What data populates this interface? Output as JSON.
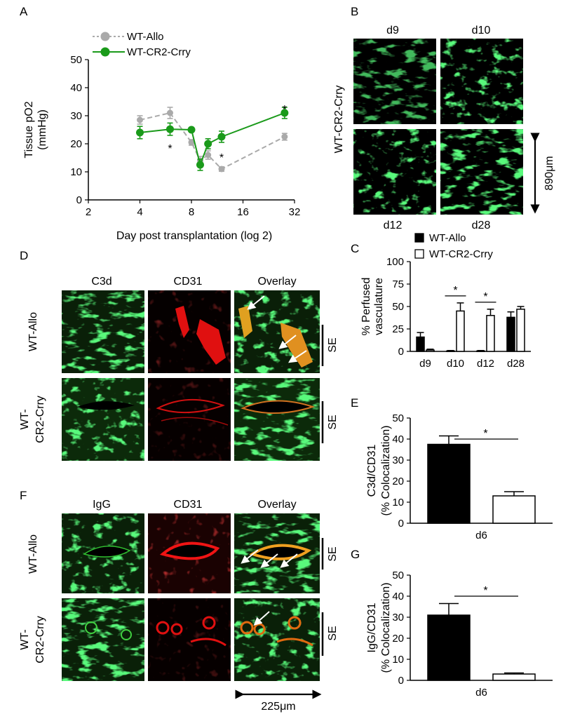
{
  "panels": {
    "a": "A",
    "b": "B",
    "c": "C",
    "d": "D",
    "e": "E",
    "f": "F",
    "g": "G"
  },
  "panel_b": {
    "row_label": "WT-CR2-Crry",
    "labels_top": [
      "d9",
      "d10"
    ],
    "labels_bottom": [
      "d12",
      "d28"
    ],
    "scale": "890μm"
  },
  "panel_d": {
    "columns": [
      "C3d",
      "CD31",
      "Overlay"
    ],
    "rows": [
      [
        "WT-Allo"
      ],
      [
        "WT-",
        "CR2-Crry"
      ]
    ],
    "se": "SE"
  },
  "panel_f": {
    "columns": [
      "IgG",
      "CD31",
      "Overlay"
    ],
    "rows": [
      [
        "WT-Allo"
      ],
      [
        "WT-",
        "CR2-Crry"
      ]
    ],
    "se": "SE",
    "scale": "225μm"
  },
  "colors": {
    "allo": "#aaaaaa",
    "crry": "#1a9a1a",
    "bar_allo": "#000000",
    "bar_crry": "#ffffff"
  },
  "chart_data": [
    {
      "id": "A",
      "type": "line",
      "xlabel": "Day post transplantation (log 2)",
      "ylabel": [
        "Tissue pO2",
        "(mmHg)"
      ],
      "xscale": "log2",
      "xlim": [
        2,
        32
      ],
      "xticks": [
        2,
        4,
        8,
        16,
        32
      ],
      "ylim": [
        0,
        50
      ],
      "yticks": [
        0,
        10,
        20,
        30,
        40,
        50
      ],
      "legend": "top-left",
      "series": [
        {
          "name": "WT-Allo",
          "style": "dashed",
          "x": [
            4,
            6,
            8,
            9,
            10,
            12,
            28
          ],
          "y": [
            28.5,
            31,
            20.5,
            14,
            16,
            11,
            22.5
          ],
          "err": [
            1.5,
            2,
            1,
            1.5,
            1.5,
            0.8,
            1.2
          ]
        },
        {
          "name": "WT-CR2-Crry",
          "style": "solid",
          "x": [
            4,
            6,
            8,
            9,
            10,
            12,
            28
          ],
          "y": [
            24,
            25.2,
            25,
            12.5,
            20,
            22.5,
            31
          ],
          "err": [
            2.2,
            2.2,
            0.8,
            2,
            1.8,
            2,
            2
          ]
        }
      ],
      "sig": [
        {
          "x": 6,
          "y": 19,
          "text": "*"
        },
        {
          "x": 12,
          "y": 15.8,
          "text": "*"
        },
        {
          "x": 28,
          "y": 33,
          "text": "*"
        }
      ]
    },
    {
      "id": "C",
      "type": "bar",
      "ylabel": [
        "% Perfused",
        "vasculature"
      ],
      "categories": [
        "d9",
        "d10",
        "d12",
        "d28"
      ],
      "ylim": [
        0,
        100
      ],
      "yticks": [
        0,
        25,
        50,
        75,
        100
      ],
      "legend": "top",
      "series": [
        {
          "name": "WT-Allo",
          "values": [
            16,
            0.5,
            0.5,
            38
          ],
          "err": [
            5,
            0.5,
            0.5,
            6
          ]
        },
        {
          "name": "WT-CR2-Crry",
          "values": [
            1.5,
            45,
            40,
            47
          ],
          "err": [
            1,
            9,
            7,
            3
          ]
        }
      ],
      "sig": [
        {
          "category": 1,
          "text": "*"
        },
        {
          "category": 2,
          "text": "*"
        }
      ]
    },
    {
      "id": "E",
      "type": "bar",
      "ylabel": [
        "C3d/CD31",
        "(% Colocalization)"
      ],
      "categories": [
        "d6"
      ],
      "ylim": [
        0,
        50
      ],
      "yticks": [
        0,
        10,
        20,
        30,
        40,
        50
      ],
      "series": [
        {
          "name": "WT-Allo",
          "values": [
            37.5
          ],
          "err": [
            4
          ]
        },
        {
          "name": "WT-CR2-Crry",
          "values": [
            13
          ],
          "err": [
            2
          ]
        }
      ],
      "sig_text": "*"
    },
    {
      "id": "G",
      "type": "bar",
      "ylabel": [
        "IgG/CD31",
        "(% Colocalization)"
      ],
      "categories": [
        "d6"
      ],
      "ylim": [
        0,
        50
      ],
      "yticks": [
        0,
        10,
        20,
        30,
        40,
        50
      ],
      "series": [
        {
          "name": "WT-Allo",
          "values": [
            31
          ],
          "err": [
            5.5
          ]
        },
        {
          "name": "WT-CR2-Crry",
          "values": [
            3
          ],
          "err": [
            0.5
          ]
        }
      ],
      "sig_text": "*"
    }
  ]
}
